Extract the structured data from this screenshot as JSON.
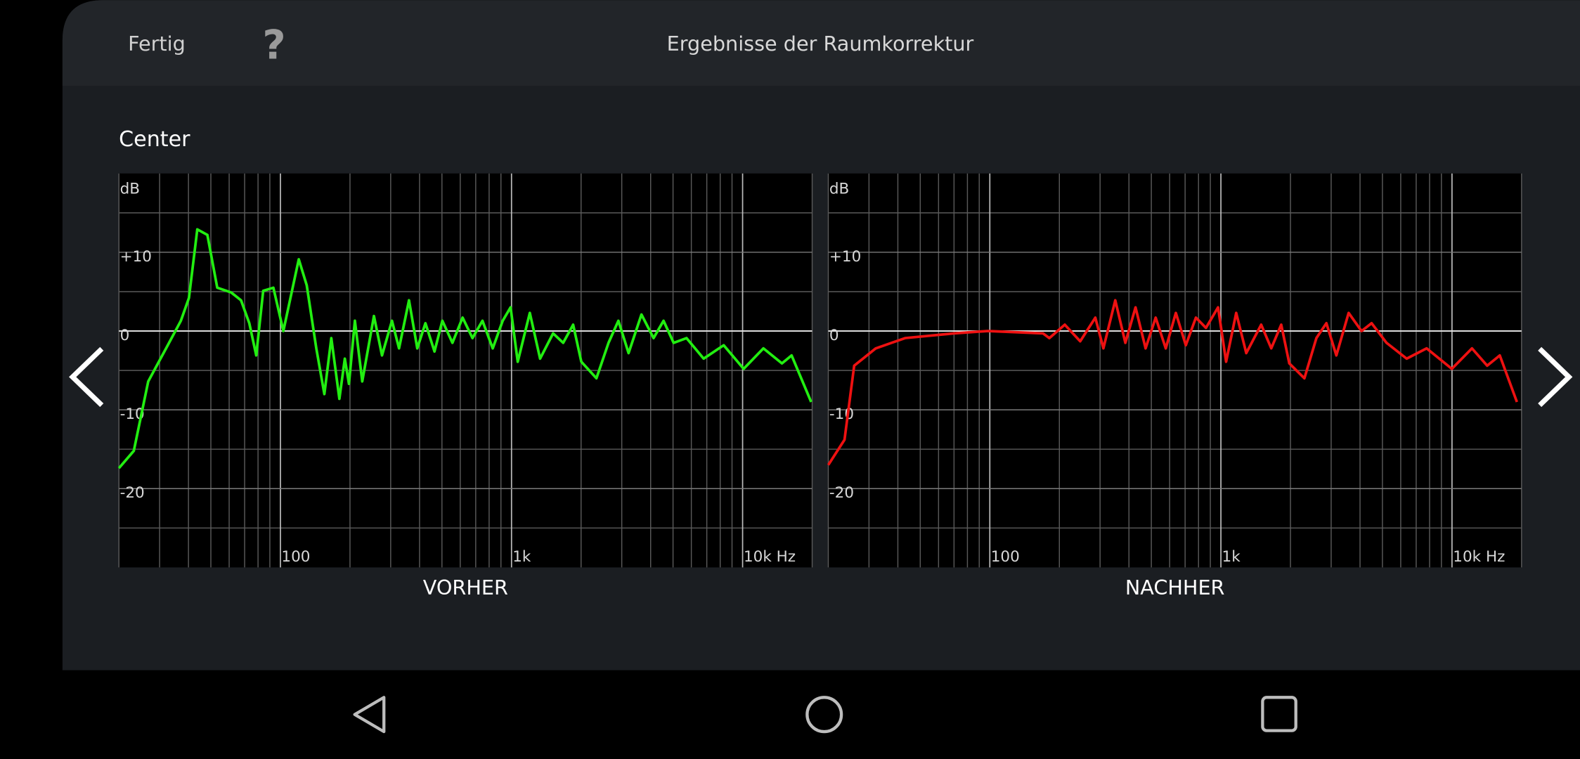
{
  "header": {
    "done": "Fertig",
    "help": "?",
    "title": "Ergebnisse der Raumkorrektur"
  },
  "section": "Center",
  "chart_data": [
    {
      "type": "line",
      "title": "VORHER",
      "y_label": "dB",
      "color": "#22ee11",
      "xlog": true,
      "xlim": [
        20,
        20000
      ],
      "ylim": [
        -30,
        20
      ],
      "xticks": [
        100,
        {
          "value": 1000,
          "label": "1k"
        },
        {
          "value": 10000,
          "label": "10k Hz"
        }
      ],
      "xgrid": [
        20,
        30,
        40,
        50,
        60,
        70,
        80,
        90,
        200,
        300,
        400,
        500,
        600,
        700,
        800,
        900,
        2000,
        3000,
        4000,
        5000,
        6000,
        7000,
        8000,
        9000,
        20000
      ],
      "yticks": [
        {
          "value": 10,
          "label": "+10"
        },
        0,
        -10,
        -20
      ],
      "ygrid": [
        -25,
        -15,
        -5,
        5,
        15
      ],
      "x": [
        20,
        23.2,
        26.8,
        32,
        37.1,
        40.2,
        43.7,
        48.3,
        53.3,
        61.2,
        67.5,
        73.3,
        78.6,
        84.2,
        93.2,
        103,
        120,
        130,
        143,
        155,
        166,
        180,
        190,
        198,
        210,
        226,
        254,
        275,
        304,
        326,
        360,
        391,
        424,
        464,
        502,
        555,
        614,
        678,
        749,
        829,
        916,
        991,
        1064,
        1200,
        1330,
        1514,
        1673,
        1849,
        2005,
        2330,
        2630,
        2900,
        3210,
        3650,
        4120,
        4550,
        5030,
        5720,
        6780,
        8280,
        10100,
        12300,
        14800,
        16300,
        19800
      ],
      "values": [
        -17.4,
        -15.2,
        -6.4,
        -2.2,
        1.3,
        4.2,
        12.9,
        12.2,
        5.5,
        4.9,
        3.9,
        1.0,
        -3.1,
        5.1,
        5.5,
        0,
        9.1,
        5.8,
        -2.2,
        -8.0,
        -0.9,
        -8.6,
        -3.5,
        -6.7,
        1.3,
        -6.4,
        1.9,
        -3.1,
        1.3,
        -2.2,
        3.9,
        -2.2,
        1.0,
        -2.6,
        1.3,
        -1.5,
        1.7,
        -0.9,
        1.3,
        -2.2,
        1.3,
        3.0,
        -3.9,
        2.3,
        -3.5,
        -0.3,
        -1.5,
        0.8,
        -3.9,
        -6.0,
        -1.5,
        1.3,
        -2.8,
        2.1,
        -0.9,
        1.3,
        -1.5,
        -0.9,
        -3.5,
        -1.8,
        -4.8,
        -2.2,
        -4.1,
        -3.1,
        -9.0
      ]
    },
    {
      "type": "line",
      "title": "NACHHER",
      "y_label": "dB",
      "color": "#ee1111",
      "xlog": true,
      "xlim": [
        20,
        20000
      ],
      "ylim": [
        -30,
        20
      ],
      "xticks": [
        100,
        {
          "value": 1000,
          "label": "1k"
        },
        {
          "value": 10000,
          "label": "10k Hz"
        }
      ],
      "xgrid": [
        20,
        30,
        40,
        50,
        60,
        70,
        80,
        90,
        200,
        300,
        400,
        500,
        600,
        700,
        800,
        900,
        2000,
        3000,
        4000,
        5000,
        6000,
        7000,
        8000,
        9000,
        20000
      ],
      "yticks": [
        {
          "value": 10,
          "label": "+10"
        },
        0,
        -10,
        -20
      ],
      "ygrid": [
        -25,
        -15,
        -5,
        5,
        15
      ],
      "x": [
        20,
        23.5,
        25.9,
        32.1,
        43,
        70,
        98,
        170,
        181,
        211,
        246,
        286,
        310,
        349,
        386,
        427,
        472,
        522,
        577,
        638,
        705,
        779,
        862,
        972,
        1053,
        1164,
        1287,
        1494,
        1651,
        1825,
        1977,
        2297,
        2590,
        2860,
        3160,
        3570,
        4060,
        4490,
        5210,
        6370,
        7770,
        9980,
        12200,
        14200,
        16100,
        19100
      ],
      "values": [
        -17,
        -13.8,
        -4.4,
        -2.2,
        -0.9,
        -0.3,
        0,
        -0.3,
        -0.9,
        0.8,
        -1.3,
        1.7,
        -2.2,
        3.9,
        -1.5,
        3.0,
        -2.2,
        1.7,
        -2.2,
        2.3,
        -1.8,
        1.7,
        0.4,
        3.0,
        -3.9,
        2.3,
        -2.8,
        0.8,
        -2.2,
        0.8,
        -4.1,
        -6.0,
        -0.9,
        1.0,
        -3.1,
        2.3,
        0,
        1.0,
        -1.5,
        -3.5,
        -2.2,
        -4.8,
        -2.2,
        -4.4,
        -3.1,
        -9.0
      ]
    }
  ]
}
